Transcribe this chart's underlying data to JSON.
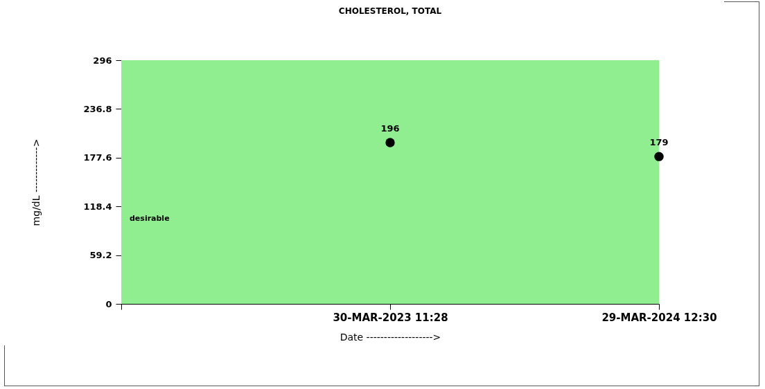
{
  "chart_data": {
    "type": "scatter",
    "title": "CHOLESTEROL, TOTAL",
    "xlabel": "Date ------------------->",
    "ylabel": "mg/dL ------------->",
    "categories": [
      null,
      "30-MAR-2023 11:28",
      "29-MAR-2024 12:30"
    ],
    "series": [
      {
        "color": "#000000",
        "values": [
          null,
          196,
          179
        ]
      }
    ],
    "ylim": [
      0,
      296
    ],
    "yticks": [
      0,
      59.2,
      118.4,
      177.6,
      236.8,
      296
    ],
    "bands": [
      {
        "axis": "y",
        "from": 0,
        "to": 296,
        "label": "desirable",
        "color": "#90ee90"
      }
    ],
    "data_labels": true,
    "marker": "circle",
    "grid": false
  }
}
